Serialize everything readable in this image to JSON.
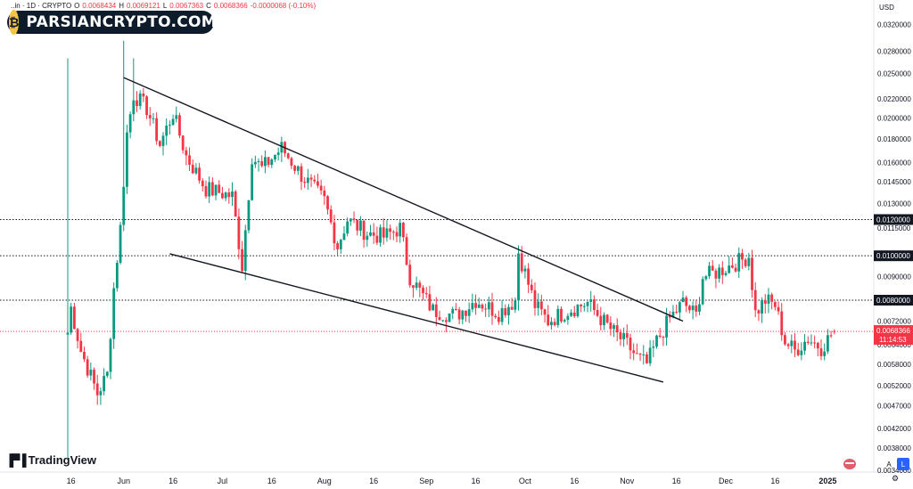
{
  "header": {
    "symbol": "..in · 1D · CRYPTO",
    "open_label": "O",
    "open_value": "0.0068434",
    "high_label": "H",
    "high_value": "0.0069121",
    "low_label": "L",
    "low_value": "0.0067363",
    "close_label": "C",
    "close_value": "0.0068366",
    "change": "-0.0000068 (-0.10%)"
  },
  "watermark": {
    "text": "PARSIANCRYPTO.COM"
  },
  "branding": {
    "name": "TradingView"
  },
  "price_axis": {
    "currency": "USD",
    "ticks": [
      "0.0320000",
      "0.0280000",
      "0.0250000",
      "0.0220000",
      "0.0200000",
      "0.0180000",
      "0.0160000",
      "0.0145000",
      "0.0130000",
      "0.0115000",
      "0.0100000",
      "0.0090000",
      "0.0080000",
      "0.0072000",
      "0.0064000",
      "0.0058000",
      "0.0052000",
      "0.0047000",
      "0.0042000",
      "0.0038000",
      "0.0034000"
    ],
    "current_price": "0.0068366",
    "countdown": "11:14:53",
    "level_labels": [
      "0.0120000",
      "0.0100000",
      "0.0080000"
    ],
    "auto_btn": "A",
    "log_btn": "L"
  },
  "time_axis": {
    "labels": [
      "16",
      "Jun",
      "16",
      "Jul",
      "16",
      "Aug",
      "16",
      "Sep",
      "16",
      "Oct",
      "16",
      "Nov",
      "16",
      "Dec",
      "16",
      "2025"
    ]
  },
  "colors": {
    "up": "#089981",
    "down": "#F23645",
    "trendline": "#131722",
    "grid_dotted": "#131722"
  },
  "chart_data": {
    "type": "candlestick",
    "interval": "1D",
    "y_scale": "log",
    "ylim": [
      0.0034,
      0.034
    ],
    "x_range": [
      "2024-05-15",
      "2025-01-04"
    ],
    "horizontal_levels": [
      0.012,
      0.01,
      0.008
    ],
    "trendlines": [
      {
        "from": [
          "2024-06-01",
          0.0245
        ],
        "to": [
          "2024-11-18",
          0.0072
        ]
      },
      {
        "from": [
          "2024-06-15",
          0.0101
        ],
        "to": [
          "2024-11-12",
          0.0053
        ]
      }
    ],
    "anchors": [
      [
        "2024-05-15",
        0.0068
      ],
      [
        "2024-05-16",
        0.0077
      ],
      [
        "2024-05-19",
        0.0062
      ],
      [
        "2024-05-24",
        0.005
      ],
      [
        "2024-05-27",
        0.0055
      ],
      [
        "2024-05-29",
        0.0085
      ],
      [
        "2024-05-31",
        0.0115
      ],
      [
        "2024-06-02",
        0.0185
      ],
      [
        "2024-06-04",
        0.0225
      ],
      [
        "2024-06-08",
        0.021
      ],
      [
        "2024-06-12",
        0.0175
      ],
      [
        "2024-06-16",
        0.0205
      ],
      [
        "2024-06-20",
        0.0165
      ],
      [
        "2024-06-26",
        0.014
      ],
      [
        "2024-07-04",
        0.0135
      ],
      [
        "2024-07-07",
        0.0095
      ],
      [
        "2024-07-10",
        0.0165
      ],
      [
        "2024-07-13",
        0.0155
      ],
      [
        "2024-07-19",
        0.0172
      ],
      [
        "2024-07-25",
        0.015
      ],
      [
        "2024-08-01",
        0.0132
      ],
      [
        "2024-08-05",
        0.0105
      ],
      [
        "2024-08-08",
        0.012
      ],
      [
        "2024-08-14",
        0.0112
      ],
      [
        "2024-08-19",
        0.011
      ],
      [
        "2024-08-24",
        0.0115
      ],
      [
        "2024-08-27",
        0.009
      ],
      [
        "2024-09-03",
        0.0076
      ],
      [
        "2024-09-10",
        0.0074
      ],
      [
        "2024-09-16",
        0.008
      ],
      [
        "2024-09-23",
        0.0075
      ],
      [
        "2024-09-28",
        0.008
      ],
      [
        "2024-09-29",
        0.0102
      ],
      [
        "2024-10-04",
        0.0078
      ],
      [
        "2024-10-08",
        0.0072
      ],
      [
        "2024-10-14",
        0.0076
      ],
      [
        "2024-10-20",
        0.0079
      ],
      [
        "2024-10-24",
        0.0073
      ],
      [
        "2024-10-28",
        0.0068
      ],
      [
        "2024-11-01",
        0.0064
      ],
      [
        "2024-11-04",
        0.006
      ],
      [
        "2024-11-07",
        0.0058
      ],
      [
        "2024-11-10",
        0.0065
      ],
      [
        "2024-11-14",
        0.0073
      ],
      [
        "2024-11-18",
        0.0079
      ],
      [
        "2024-11-22",
        0.0074
      ],
      [
        "2024-11-24",
        0.009
      ],
      [
        "2024-11-28",
        0.0092
      ],
      [
        "2024-12-02",
        0.0095
      ],
      [
        "2024-12-06",
        0.0098
      ],
      [
        "2024-12-08",
        0.01
      ],
      [
        "2024-12-10",
        0.0075
      ],
      [
        "2024-12-13",
        0.008
      ],
      [
        "2024-12-16",
        0.0078
      ],
      [
        "2024-12-19",
        0.0065
      ],
      [
        "2024-12-22",
        0.0062
      ],
      [
        "2024-12-26",
        0.0066
      ],
      [
        "2024-12-30",
        0.0063
      ],
      [
        "2025-01-03",
        0.0068366
      ]
    ],
    "last_candle": {
      "date": "2025-01-03",
      "open": 0.0068434,
      "high": 0.0069121,
      "low": 0.0067363,
      "close": 0.0068366
    }
  }
}
